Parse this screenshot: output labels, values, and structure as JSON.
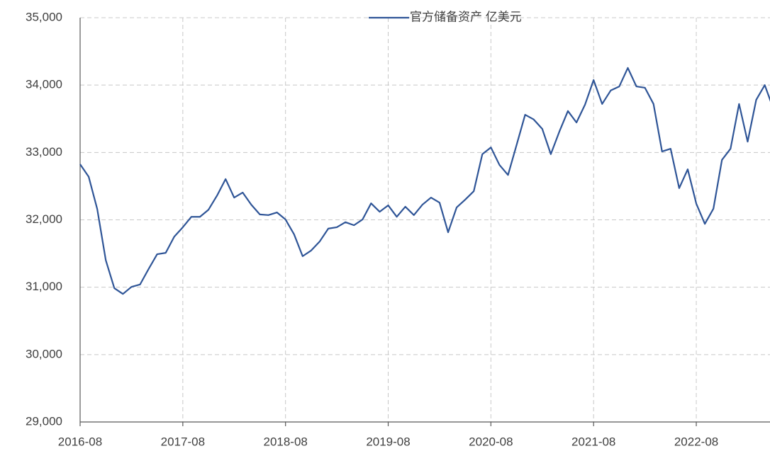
{
  "chart_data": {
    "type": "line",
    "categories": [
      "2016-08",
      null,
      null,
      null,
      null,
      null,
      null,
      null,
      null,
      null,
      null,
      null,
      "2017-08",
      null,
      null,
      null,
      null,
      null,
      null,
      null,
      null,
      null,
      null,
      null,
      "2018-08",
      null,
      null,
      null,
      null,
      null,
      null,
      null,
      null,
      null,
      null,
      null,
      "2019-08",
      null,
      null,
      null,
      null,
      null,
      null,
      null,
      null,
      null,
      null,
      null,
      "2020-08",
      null,
      null,
      null,
      null,
      null,
      null,
      null,
      null,
      null,
      null,
      null,
      "2021-08",
      null,
      null,
      null,
      null,
      null,
      null,
      null,
      null,
      null,
      null,
      null,
      "2022-08",
      null,
      null,
      null,
      null,
      null,
      null,
      null,
      null,
      null
    ],
    "series": [
      {
        "name": "官方储备资产 亿美元",
        "color": "#2f5597",
        "values": [
          32825,
          32640,
          32160,
          31400,
          30985,
          30900,
          31005,
          31040,
          31270,
          31490,
          31510,
          31750,
          31890,
          32045,
          32045,
          32150,
          32360,
          32605,
          32330,
          32405,
          32225,
          32080,
          32070,
          32110,
          32005,
          31785,
          31460,
          31545,
          31680,
          31870,
          31890,
          31965,
          31920,
          32005,
          32245,
          32120,
          32215,
          32045,
          32195,
          32070,
          32225,
          32330,
          32255,
          31815,
          32185,
          32300,
          32425,
          32975,
          33075,
          32815,
          32665,
          33110,
          33560,
          33490,
          33350,
          32975,
          33310,
          33615,
          33445,
          33710,
          34075,
          33720,
          33920,
          33980,
          34255,
          33980,
          33960,
          33720,
          33015,
          33055,
          32470,
          32750,
          32240,
          31940,
          32165,
          32890,
          33055,
          33720,
          33160,
          33780,
          34000,
          33650
        ]
      }
    ],
    "ylim": [
      29000,
      35000
    ],
    "yticks": [
      {
        "value": 29000,
        "label": "29,000"
      },
      {
        "value": 30000,
        "label": "30,000"
      },
      {
        "value": 31000,
        "label": "31,000"
      },
      {
        "value": 32000,
        "label": "32,000"
      },
      {
        "value": 33000,
        "label": "33,000"
      },
      {
        "value": 34000,
        "label": "34,000"
      },
      {
        "value": 35000,
        "label": "35,000"
      }
    ],
    "grid": true
  }
}
